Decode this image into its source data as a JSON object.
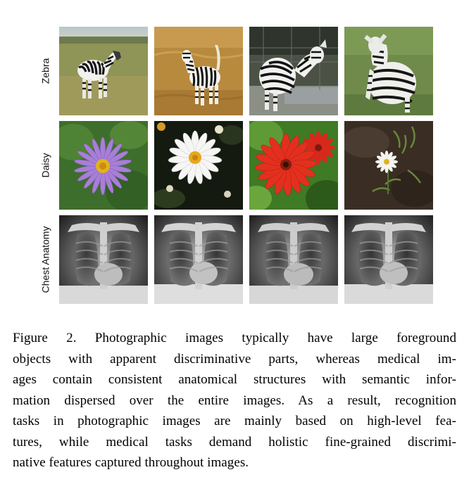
{
  "figure": {
    "rows": [
      {
        "label": "Zebra",
        "tiles": [
          "zebra-standing-grass",
          "zebra-dry-grass",
          "zebra-rear-view-fence",
          "zebra-grazing-closeup"
        ]
      },
      {
        "label": "Daisy",
        "tiles": [
          "purple-aster-flower",
          "white-daisy-dark-background",
          "red-gerbera-daisy",
          "small-white-daisy-soil"
        ]
      },
      {
        "label": "Chest Anatomy",
        "tiles": [
          "chest-xray-1",
          "chest-xray-2",
          "chest-xray-3",
          "chest-xray-4"
        ]
      }
    ],
    "caption_lines": [
      "Figure 2.  Photographic images typically have large foreground",
      "objects with apparent discriminative parts, whereas medical im-",
      "ages contain consistent anatomical structures with semantic infor-",
      "mation dispersed over the entire images.  As a result, recognition",
      "tasks in photographic images are mainly based on high-level fea-",
      "tures, while medical tasks demand holistic fine-grained discrimi-",
      "native features captured throughout images."
    ]
  }
}
